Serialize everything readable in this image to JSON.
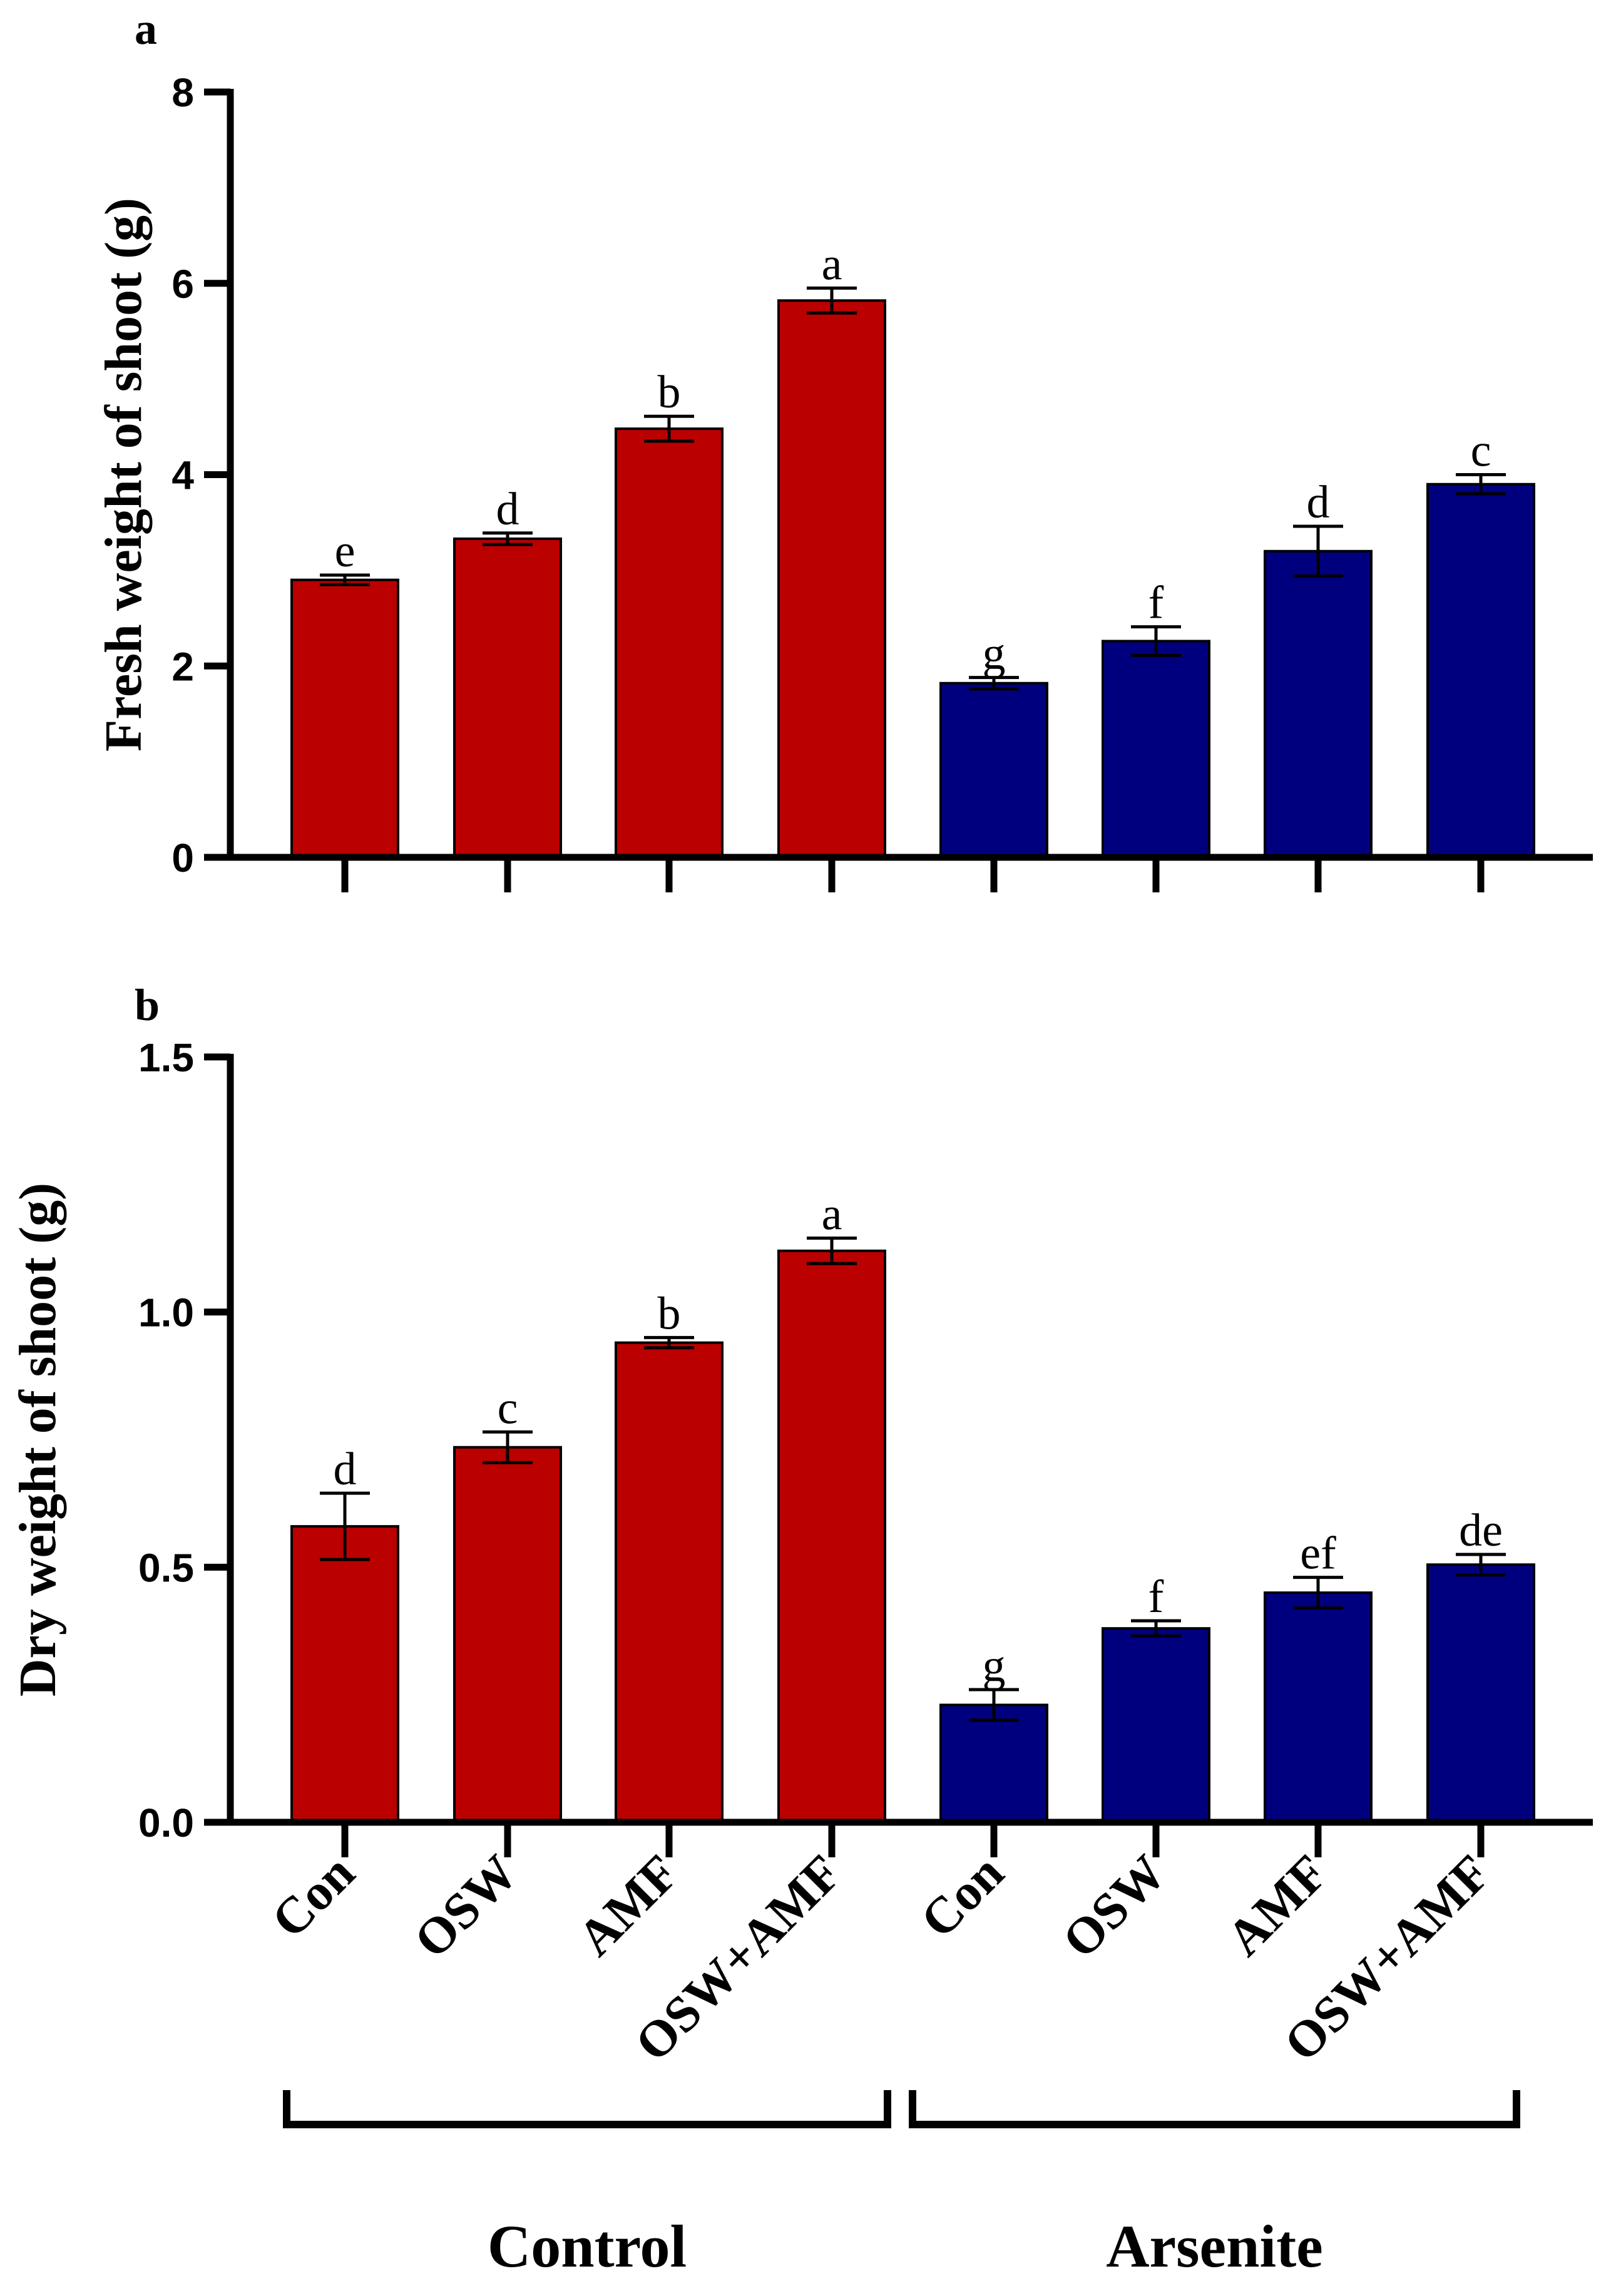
{
  "colors": {
    "control": "#bb0000",
    "arsenite": "#00007f",
    "axis": "#000000"
  },
  "categories": [
    "Con",
    "OSW",
    "AMF",
    "OSW+AMF",
    "Con",
    "OSW",
    "AMF",
    "OSW+AMF"
  ],
  "groups": [
    {
      "name": "Control",
      "bars": [
        0,
        3
      ]
    },
    {
      "name": "Arsenite",
      "bars": [
        4,
        7
      ]
    }
  ],
  "chart_data": [
    {
      "type": "bar",
      "panel": "a",
      "title": "",
      "xlabel": "",
      "ylabel": "Fresh weight of shoot (g)",
      "ylim": [
        0,
        8
      ],
      "yticks": [
        0,
        2,
        4,
        6,
        8
      ],
      "ytick_labels": [
        "0",
        "2",
        "4",
        "6",
        "8"
      ],
      "categories": [
        "Con",
        "OSW",
        "AMF",
        "OSW+AMF",
        "Con",
        "OSW",
        "AMF",
        "OSW+AMF"
      ],
      "series": [
        {
          "name": "Control",
          "indices": [
            0,
            1,
            2,
            3
          ]
        },
        {
          "name": "Arsenite",
          "indices": [
            4,
            5,
            6,
            7
          ]
        }
      ],
      "values": [
        2.9,
        3.33,
        4.48,
        5.82,
        1.82,
        2.26,
        3.2,
        3.9
      ],
      "errors": [
        0.05,
        0.06,
        0.13,
        0.13,
        0.06,
        0.15,
        0.26,
        0.1
      ],
      "labels": [
        "e",
        "d",
        "b",
        "a",
        "g",
        "f",
        "d",
        "c"
      ],
      "grid": false
    },
    {
      "type": "bar",
      "panel": "b",
      "title": "",
      "xlabel": "",
      "ylabel": "Dry weight of shoot (g)",
      "ylim": [
        0,
        1.5
      ],
      "yticks": [
        0,
        0.5,
        1.0,
        1.5
      ],
      "ytick_labels": [
        "0.0",
        "0.5",
        "1.0",
        "1.5"
      ],
      "categories": [
        "Con",
        "OSW",
        "AMF",
        "OSW+AMF",
        "Con",
        "OSW",
        "AMF",
        "OSW+AMF"
      ],
      "series": [
        {
          "name": "Control",
          "indices": [
            0,
            1,
            2,
            3
          ]
        },
        {
          "name": "Arsenite",
          "indices": [
            4,
            5,
            6,
            7
          ]
        }
      ],
      "values": [
        0.58,
        0.735,
        0.94,
        1.12,
        0.23,
        0.38,
        0.45,
        0.505
      ],
      "errors": [
        0.065,
        0.03,
        0.01,
        0.025,
        0.03,
        0.015,
        0.03,
        0.02
      ],
      "labels": [
        "d",
        "c",
        "b",
        "a",
        "g",
        "f",
        "ef",
        "de"
      ],
      "grid": false
    }
  ]
}
